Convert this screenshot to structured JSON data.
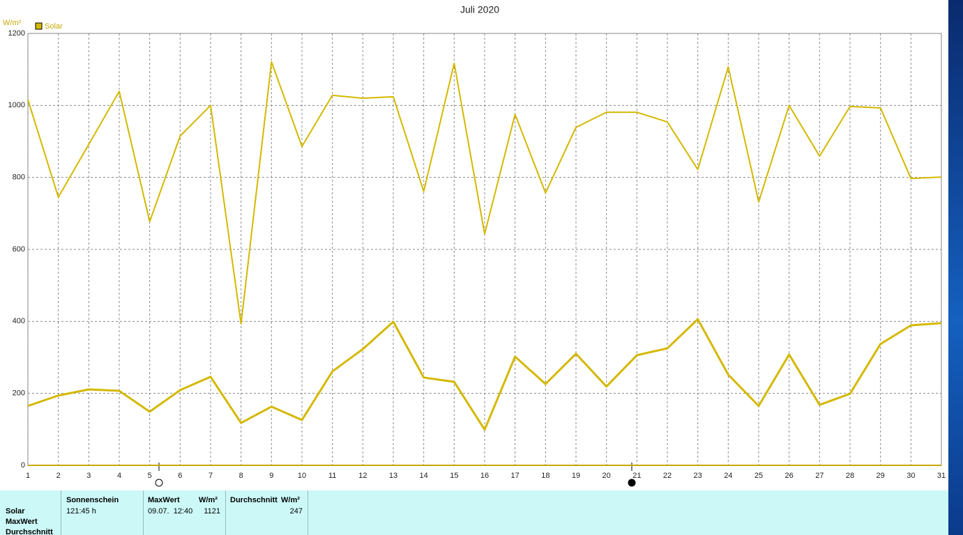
{
  "chart_data": {
    "type": "line",
    "title": "Juli 2020",
    "y_label": "W/m²",
    "x": [
      1,
      2,
      3,
      4,
      5,
      6,
      7,
      8,
      9,
      10,
      11,
      12,
      13,
      14,
      15,
      16,
      17,
      18,
      19,
      20,
      21,
      22,
      23,
      24,
      25,
      26,
      27,
      28,
      29,
      30,
      31
    ],
    "series": [
      {
        "name": "Solar",
        "color": "#d4b800",
        "values": [
          1016,
          745,
          892,
          1039,
          677,
          915,
          1000,
          393,
          1121,
          886,
          1028,
          1020,
          1024,
          761,
          1117,
          643,
          975,
          757,
          939,
          981,
          981,
          954,
          822,
          1107,
          732,
          1000,
          859,
          997,
          993,
          797,
          801
        ]
      },
      {
        "color": "#d4b800",
        "values": [
          165,
          194,
          211,
          207,
          149,
          209,
          246,
          118,
          163,
          126,
          261,
          323,
          399,
          244,
          232,
          99,
          302,
          226,
          310,
          219,
          306,
          325,
          406,
          252,
          165,
          308,
          168,
          199,
          337,
          389,
          395
        ]
      }
    ],
    "xlim": [
      1,
      31
    ],
    "xticks": [
      1,
      2,
      3,
      4,
      5,
      6,
      7,
      8,
      9,
      10,
      11,
      12,
      13,
      14,
      15,
      16,
      17,
      18,
      19,
      20,
      21,
      22,
      23,
      24,
      25,
      26,
      27,
      28,
      29,
      30,
      31
    ],
    "ylim": [
      0,
      1200
    ],
    "yticks": [
      0,
      200,
      400,
      600,
      800,
      1000,
      1200
    ],
    "grid": true
  },
  "table": {
    "row_labels": [
      "Solar",
      "MaxWert",
      "Durchschnitt"
    ],
    "headers": [
      "Sonnenschein",
      "MaxWert",
      "W/m²",
      "Durchschnitt",
      "W/m²"
    ],
    "cells": [
      "121:45 h",
      "09.07.  12:40",
      "1121",
      "247"
    ]
  }
}
